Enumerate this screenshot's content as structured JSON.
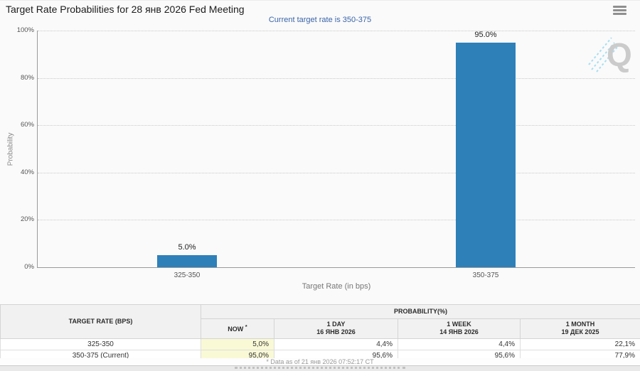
{
  "header": {
    "title": "Target Rate Probabilities for 28 янв 2026 Fed Meeting",
    "subtitle": "Current target rate is 350-375",
    "menu_icon": "hamburger-menu-icon"
  },
  "chart_data": {
    "type": "bar",
    "title": "Target Rate Probabilities for 28 янв 2026 Fed Meeting",
    "subtitle": "Current target rate is 350-375",
    "categories": [
      "325-350",
      "350-375"
    ],
    "values": [
      5.0,
      95.0
    ],
    "value_label_format": "one_decimal_percent",
    "xlabel": "Target Rate (in bps)",
    "ylabel": "Probability",
    "ylim": [
      0,
      100
    ],
    "yticks": [
      0,
      20,
      40,
      60,
      80,
      100
    ],
    "ytick_suffix": "%",
    "grid": "horizontal dotted",
    "legend": "none",
    "bar_color": "#2e80b9"
  },
  "watermark": {
    "letter": "Q"
  },
  "table": {
    "col1_header": "TARGET RATE (BPS)",
    "group_header": "PROBABILITY(%)",
    "now_header": "NOW",
    "now_asterisk": "*",
    "cols": [
      {
        "label": "1 DAY",
        "date": "16 ЯНВ 2026"
      },
      {
        "label": "1 WEEK",
        "date": "14 ЯНВ 2026"
      },
      {
        "label": "1 MONTH",
        "date": "19 ДЕК 2025"
      }
    ],
    "rows": [
      {
        "rate": "325-350",
        "now": "5,0%",
        "day": "4,4%",
        "week": "4,4%",
        "month": "22,1%"
      },
      {
        "rate": "350-375 (Current)",
        "now": "95,0%",
        "day": "95,6%",
        "week": "95,6%",
        "month": "77,9%"
      }
    ]
  },
  "footer": {
    "note": "* Data as of 21 янв 2026 07:52:17 CT"
  },
  "colors": {
    "bar": "#2e80b9",
    "subtitle_text": "#3a64a8",
    "highlight_cell": "#f9f9d6",
    "header_bg": "#f1f1f1"
  }
}
